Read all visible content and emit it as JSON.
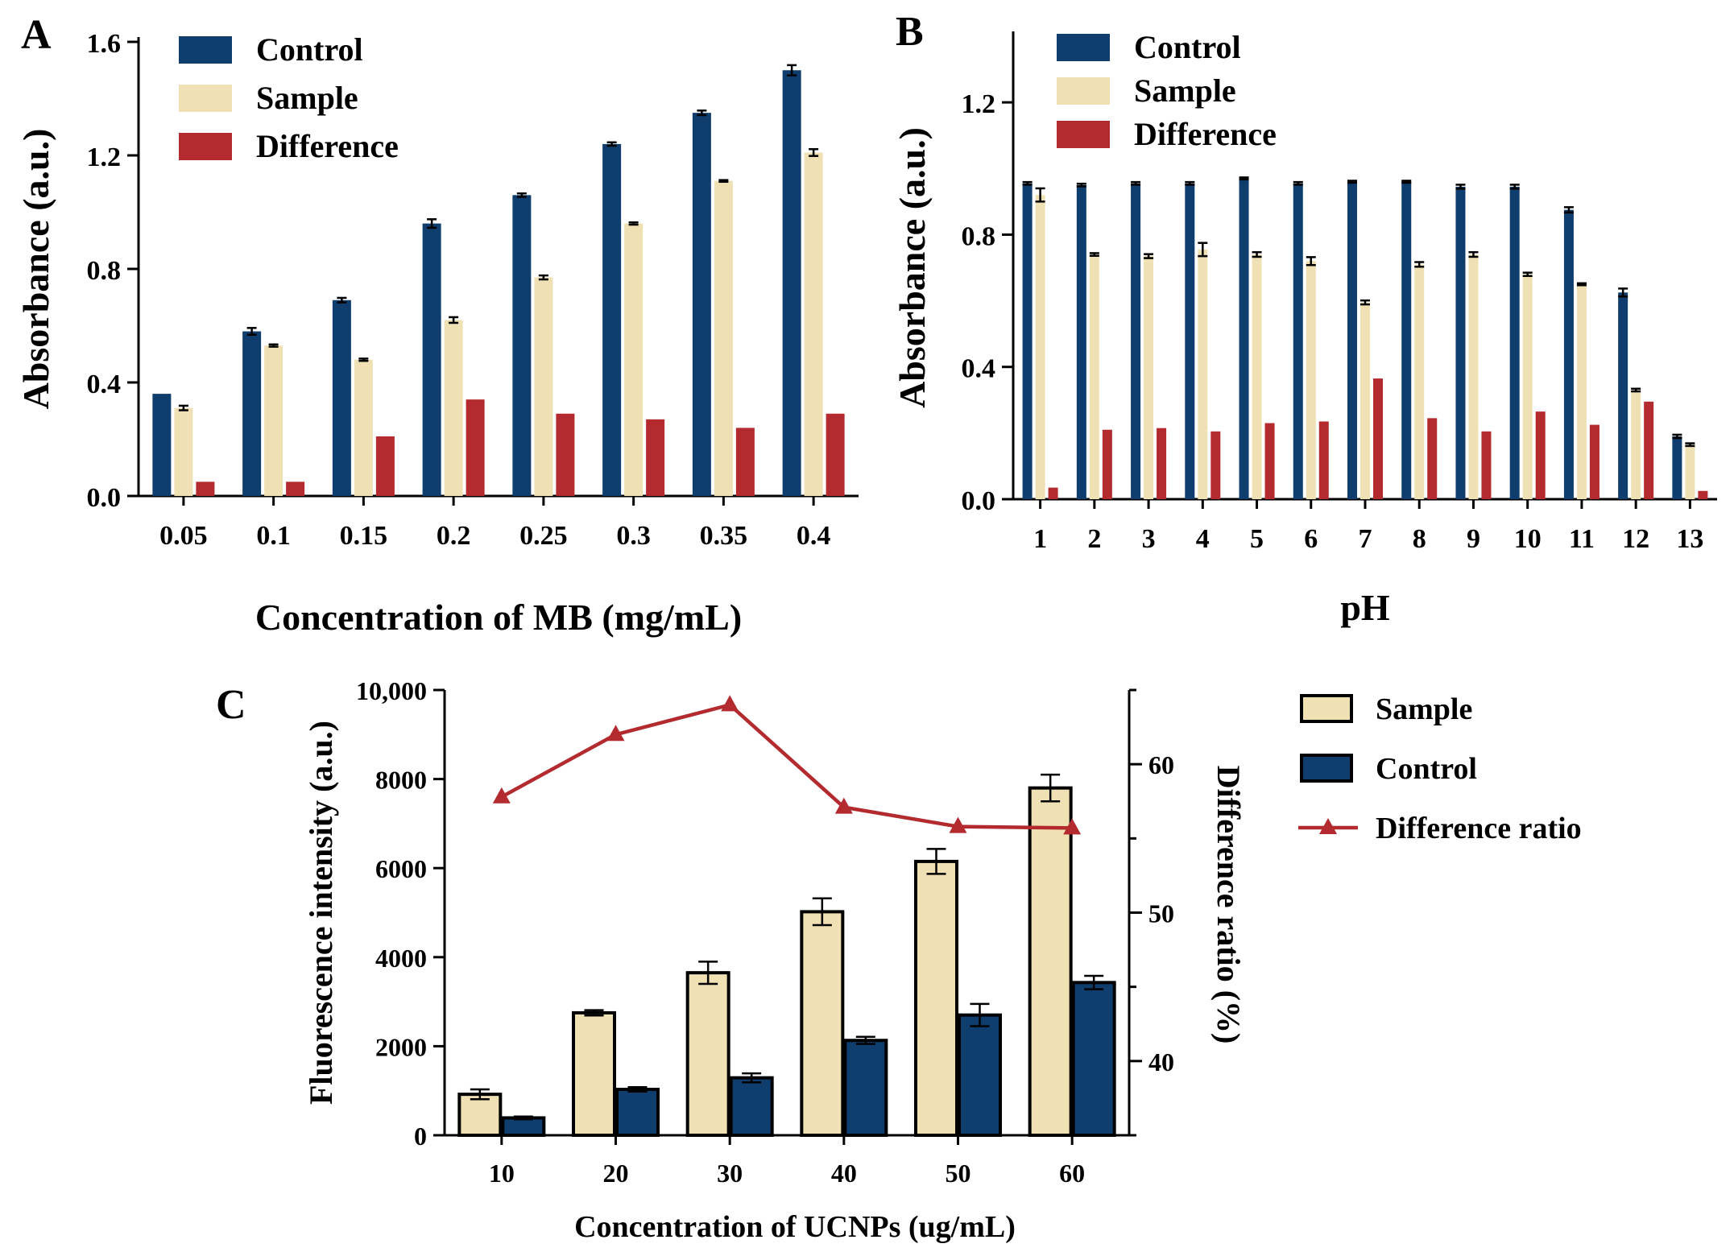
{
  "chart_data": [
    {
      "panel": "A",
      "type": "bar",
      "xlabel": "Concentration of MB (mg/mL)",
      "ylabel": "Absorbance (a.u.)",
      "ylim": [
        0,
        1.6
      ],
      "yticks": [
        "0.0",
        "0.4",
        "0.8",
        "1.2",
        "1.6"
      ],
      "categories": [
        "0.05",
        "0.1",
        "0.15",
        "0.2",
        "0.25",
        "0.3",
        "0.35",
        "0.4"
      ],
      "legend_position": "top-left",
      "series": [
        {
          "name": "Control",
          "color": "#0e3d6e",
          "values": [
            0.36,
            0.58,
            0.69,
            0.96,
            1.06,
            1.24,
            1.35,
            1.5
          ],
          "errors": [
            0,
            0.012,
            0.008,
            0.015,
            0.006,
            0.006,
            0.008,
            0.018
          ]
        },
        {
          "name": "Sample",
          "color": "#f0e1b4",
          "values": [
            0.31,
            0.53,
            0.48,
            0.62,
            0.77,
            0.96,
            1.11,
            1.21
          ],
          "errors": [
            0.008,
            0.004,
            0.004,
            0.01,
            0.007,
            0.004,
            0.003,
            0.012
          ]
        },
        {
          "name": "Difference",
          "color": "#b32a2f",
          "values": [
            0.05,
            0.05,
            0.21,
            0.34,
            0.29,
            0.27,
            0.24,
            0.29
          ],
          "errors": [
            0,
            0,
            0,
            0,
            0,
            0,
            0,
            0
          ]
        }
      ]
    },
    {
      "panel": "B",
      "type": "bar",
      "xlabel": "pH",
      "ylabel": "Absorbance (a.u.)",
      "ylim": [
        0,
        1.4
      ],
      "yticks": [
        "0.0",
        "0.4",
        "0.8",
        "1.2"
      ],
      "categories": [
        "1",
        "2",
        "3",
        "4",
        "5",
        "6",
        "7",
        "8",
        "9",
        "10",
        "11",
        "12",
        "13"
      ],
      "legend_position": "top-left",
      "series": [
        {
          "name": "Control",
          "color": "#0e3d6e",
          "values": [
            0.955,
            0.95,
            0.955,
            0.955,
            0.97,
            0.955,
            0.96,
            0.96,
            0.945,
            0.945,
            0.875,
            0.625,
            0.19
          ],
          "errors": [
            0.004,
            0.004,
            0.004,
            0.004,
            0.003,
            0.004,
            0.003,
            0.003,
            0.006,
            0.006,
            0.008,
            0.012,
            0.005
          ]
        },
        {
          "name": "Sample",
          "color": "#f0e1b4",
          "values": [
            0.92,
            0.74,
            0.735,
            0.755,
            0.74,
            0.72,
            0.595,
            0.71,
            0.74,
            0.68,
            0.65,
            0.33,
            0.165
          ],
          "errors": [
            0.02,
            0.004,
            0.006,
            0.02,
            0.007,
            0.012,
            0.006,
            0.007,
            0.007,
            0.005,
            0.003,
            0.004,
            0.004
          ]
        },
        {
          "name": "Difference",
          "color": "#b32a2f",
          "values": [
            0.035,
            0.21,
            0.215,
            0.205,
            0.23,
            0.235,
            0.365,
            0.245,
            0.205,
            0.265,
            0.225,
            0.295,
            0.025
          ],
          "errors": [
            0,
            0,
            0,
            0,
            0,
            0,
            0,
            0,
            0,
            0,
            0,
            0,
            0
          ]
        }
      ]
    },
    {
      "panel": "C",
      "type": "bar",
      "xlabel": "Concentration of UCNPs (ug/mL)",
      "ylabel": "Fluorescence intensity (a.u.)",
      "y2label": "Difference ratio (%)",
      "ylim": [
        0,
        10000
      ],
      "y2lim": [
        35,
        65
      ],
      "yticks": [
        "0",
        "2000",
        "4000",
        "6000",
        "8000",
        "10,000"
      ],
      "y2ticks": [
        "40",
        "50",
        "60"
      ],
      "categories": [
        "10",
        "20",
        "30",
        "40",
        "50",
        "60"
      ],
      "legend_position": "right",
      "series": [
        {
          "name": "Sample",
          "color": "#f0e1b4",
          "values": [
            920,
            2750,
            3650,
            5020,
            6150,
            7800
          ],
          "errors": [
            110,
            60,
            250,
            300,
            280,
            300
          ]
        },
        {
          "name": "Control",
          "color": "#0e3d6e",
          "values": [
            390,
            1030,
            1290,
            2130,
            2700,
            3430
          ],
          "errors": [
            30,
            50,
            100,
            80,
            250,
            150
          ]
        },
        {
          "name": "Difference ratio",
          "color": "#b32a2f",
          "type": "line",
          "marker": "triangle",
          "axis": "right",
          "values": [
            57.8,
            62.0,
            64.0,
            57.1,
            55.8,
            55.7
          ]
        }
      ]
    }
  ]
}
